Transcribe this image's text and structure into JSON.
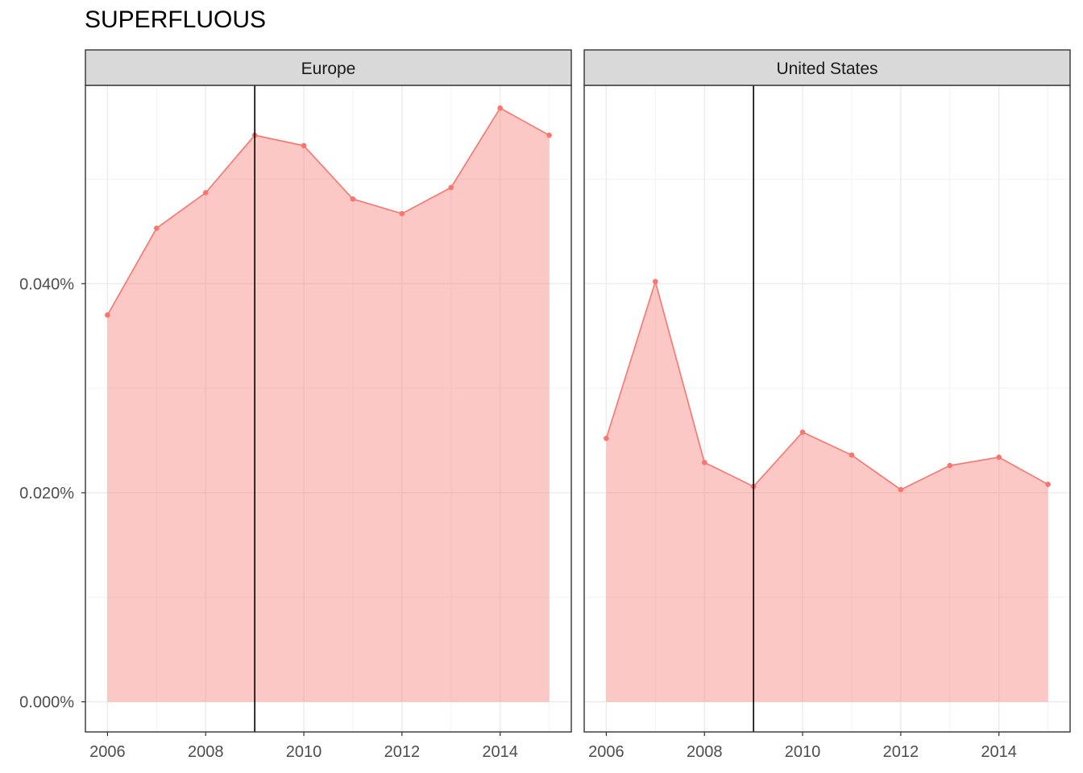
{
  "chart_data": {
    "type": "area",
    "title": "SUPERFLUOUS",
    "xlabel": "",
    "ylabel": "",
    "x": [
      2006,
      2007,
      2008,
      2009,
      2010,
      2011,
      2012,
      2013,
      2014,
      2015
    ],
    "xlim": [
      2005.55,
      2015.45
    ],
    "ylim": [
      -2.88e-05,
      0.0005897
    ],
    "x_ticks": [
      2006,
      2008,
      2010,
      2012,
      2014
    ],
    "x_tick_labels": [
      "2006",
      "2008",
      "2010",
      "2012",
      "2014"
    ],
    "y_ticks": [
      0,
      0.0002,
      0.0004
    ],
    "y_tick_labels": [
      "0.000%",
      "0.020%",
      "0.040%"
    ],
    "vline_x": 2009,
    "grid": true,
    "colors": {
      "line": "#f8766d",
      "fill": "#f8766d",
      "fill_opacity": 0.4,
      "vline": "#000000",
      "strip": "#d9d9d9"
    },
    "panels": [
      {
        "strip": "Europe",
        "values": [
          0.00037,
          0.000453,
          0.000487,
          0.000542,
          0.000532,
          0.000481,
          0.000467,
          0.000492,
          0.000568,
          0.000542
        ]
      },
      {
        "strip": "United States",
        "values": [
          0.000252,
          0.000402,
          0.000229,
          0.000206,
          0.000258,
          0.000236,
          0.000203,
          0.000226,
          0.000234,
          0.000208
        ]
      }
    ]
  }
}
